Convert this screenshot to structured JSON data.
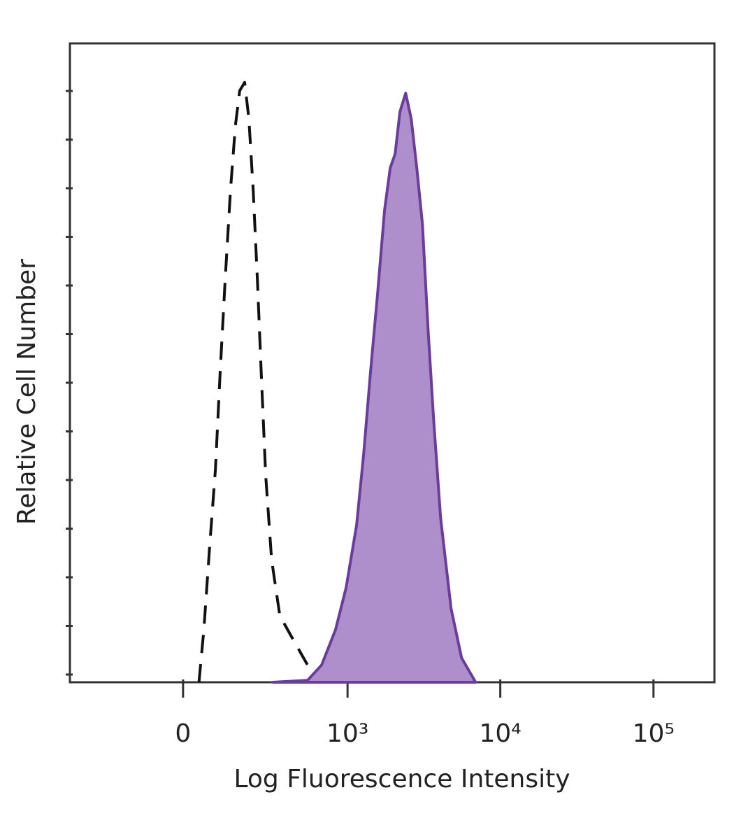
{
  "chart_data": {
    "type": "histogram-overlay",
    "x_label": "Log Fluorescence Intensity",
    "y_label": "Relative Cell Number",
    "xscale": "biexponential",
    "xlim": [
      -450,
      250000
    ],
    "ylim": [
      0,
      100
    ],
    "xticks": [
      0,
      {
        "value": 1000,
        "label": "10³"
      },
      {
        "value": 10000,
        "label": "10⁴"
      },
      {
        "value": 100000,
        "label": "10⁵"
      }
    ],
    "series": [
      {
        "color": "#111111",
        "style": "dashed",
        "fill": "none",
        "x": [
          41,
          54,
          70,
          86,
          100,
          115,
          132,
          148,
          163,
          181,
          197,
          214,
          232,
          250,
          270,
          299,
          344,
          430,
          539,
          636
        ],
        "values": [
          0,
          8.2,
          21.4,
          33.4,
          48.7,
          63.0,
          77.2,
          87.1,
          92.6,
          93.9,
          88.2,
          77.2,
          63.0,
          47.6,
          32.3,
          19.2,
          10.4,
          6.6,
          2.7,
          0
        ]
      },
      {
        "color": "#6a3d9a",
        "style": "solid",
        "fill": "#ae8fcb",
        "x": [
          305,
          539,
          672,
          832,
          978,
          1148,
          1276,
          1419,
          1577,
          1752,
          1908,
          2055,
          2211,
          2409,
          2620,
          2849,
          3101,
          3373,
          3672,
          4077,
          4777,
          5593,
          6902
        ],
        "values": [
          0,
          0.3,
          2.7,
          8.2,
          14.8,
          24.6,
          35.6,
          48.7,
          60.8,
          73.9,
          80.5,
          82.7,
          89.3,
          92.2,
          88.2,
          80.5,
          71.7,
          55.3,
          41.1,
          25.7,
          11.5,
          3.8,
          0
        ]
      }
    ]
  }
}
